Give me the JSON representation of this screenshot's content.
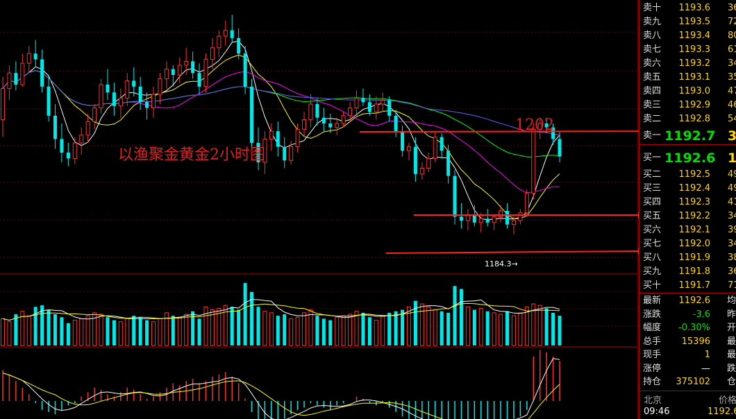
{
  "chart_data": {
    "type": "candlestick",
    "annotations": {
      "chart_title": "以渔聚金黄金2小时图",
      "level_label": "1202",
      "low_label": "1184.3→"
    },
    "candles": [
      [
        1190.2,
        1192.4,
        1189.3,
        1191.8
      ],
      [
        1191.8,
        1193.0,
        1191.2,
        1192.6
      ],
      [
        1192.6,
        1193.2,
        1191.7,
        1192.0
      ],
      [
        1192.0,
        1193.6,
        1191.9,
        1193.1
      ],
      [
        1193.1,
        1194.0,
        1192.6,
        1193.6
      ],
      [
        1193.6,
        1194.3,
        1192.9,
        1193.3
      ],
      [
        1193.3,
        1193.8,
        1191.6,
        1191.9
      ],
      [
        1191.9,
        1192.5,
        1190.1,
        1190.4
      ],
      [
        1190.4,
        1191.0,
        1188.7,
        1189.2
      ],
      [
        1189.2,
        1190.0,
        1188.0,
        1188.5
      ],
      [
        1188.5,
        1189.0,
        1187.8,
        1188.2
      ],
      [
        1188.2,
        1189.3,
        1187.9,
        1189.0
      ],
      [
        1189.0,
        1189.8,
        1188.4,
        1189.4
      ],
      [
        1189.4,
        1190.5,
        1189.0,
        1190.1
      ],
      [
        1190.1,
        1191.0,
        1189.7,
        1190.8
      ],
      [
        1190.8,
        1192.3,
        1190.5,
        1192.0
      ],
      [
        1192.0,
        1192.8,
        1191.2,
        1191.6
      ],
      [
        1191.6,
        1192.1,
        1190.4,
        1190.9
      ],
      [
        1190.9,
        1191.8,
        1190.3,
        1191.3
      ],
      [
        1191.3,
        1192.6,
        1190.9,
        1192.2
      ],
      [
        1192.2,
        1192.9,
        1191.4,
        1191.9
      ],
      [
        1191.9,
        1192.4,
        1190.7,
        1191.1
      ],
      [
        1191.1,
        1191.6,
        1190.2,
        1190.8
      ],
      [
        1190.8,
        1191.9,
        1190.3,
        1191.5
      ],
      [
        1191.5,
        1192.6,
        1191.0,
        1192.3
      ],
      [
        1192.3,
        1193.2,
        1191.8,
        1192.8
      ],
      [
        1192.8,
        1193.0,
        1191.9,
        1192.5
      ],
      [
        1192.5,
        1193.4,
        1192.1,
        1193.0
      ],
      [
        1193.0,
        1193.9,
        1192.5,
        1193.2
      ],
      [
        1193.2,
        1193.7,
        1192.3,
        1192.6
      ],
      [
        1192.6,
        1193.1,
        1191.5,
        1191.9
      ],
      [
        1191.9,
        1193.6,
        1191.6,
        1193.3
      ],
      [
        1193.3,
        1194.4,
        1192.8,
        1193.9
      ],
      [
        1193.9,
        1194.8,
        1193.4,
        1194.5
      ],
      [
        1194.5,
        1195.3,
        1194.0,
        1194.8
      ],
      [
        1194.8,
        1195.6,
        1194.2,
        1194.4
      ],
      [
        1194.4,
        1194.9,
        1193.3,
        1193.6
      ],
      [
        1193.6,
        1194.0,
        1191.5,
        1191.9
      ],
      [
        1191.9,
        1192.3,
        1188.5,
        1189.0
      ],
      [
        1189.0,
        1189.8,
        1187.6,
        1188.0
      ],
      [
        1188.0,
        1189.6,
        1187.4,
        1189.2
      ],
      [
        1189.2,
        1190.0,
        1188.6,
        1189.6
      ],
      [
        1189.6,
        1190.1,
        1188.3,
        1188.8
      ],
      [
        1188.8,
        1189.3,
        1187.7,
        1188.1
      ],
      [
        1188.1,
        1189.1,
        1187.9,
        1188.8
      ],
      [
        1188.8,
        1190.0,
        1188.5,
        1189.7
      ],
      [
        1189.7,
        1190.6,
        1189.3,
        1190.2
      ],
      [
        1190.2,
        1191.5,
        1189.8,
        1191.0
      ],
      [
        1191.0,
        1191.3,
        1189.9,
        1190.3
      ],
      [
        1190.3,
        1190.8,
        1189.6,
        1190.0
      ],
      [
        1190.0,
        1190.5,
        1189.5,
        1189.8
      ],
      [
        1189.8,
        1190.3,
        1189.4,
        1190.0
      ],
      [
        1190.0,
        1190.6,
        1189.8,
        1190.4
      ],
      [
        1190.4,
        1191.1,
        1190.1,
        1190.8
      ],
      [
        1190.8,
        1191.7,
        1190.5,
        1191.3
      ],
      [
        1191.3,
        1191.8,
        1190.9,
        1191.1
      ],
      [
        1191.1,
        1191.5,
        1190.4,
        1190.6
      ],
      [
        1190.6,
        1191.4,
        1190.2,
        1191.0
      ],
      [
        1191.0,
        1191.6,
        1190.6,
        1191.2
      ],
      [
        1191.2,
        1191.4,
        1190.1,
        1190.4
      ],
      [
        1190.4,
        1190.7,
        1189.3,
        1189.6
      ],
      [
        1189.6,
        1189.9,
        1188.3,
        1188.6
      ],
      [
        1188.6,
        1189.0,
        1188.1,
        1188.8
      ],
      [
        1188.8,
        1189.3,
        1187.0,
        1187.4
      ],
      [
        1187.4,
        1188.0,
        1187.1,
        1187.7
      ],
      [
        1187.7,
        1188.5,
        1187.5,
        1188.2
      ],
      [
        1188.2,
        1189.6,
        1188.0,
        1189.3
      ],
      [
        1189.3,
        1189.5,
        1188.2,
        1188.6
      ],
      [
        1188.6,
        1188.9,
        1186.9,
        1187.3
      ],
      [
        1187.3,
        1187.6,
        1184.8,
        1185.2
      ],
      [
        1185.2,
        1185.9,
        1184.6,
        1185.0
      ],
      [
        1185.0,
        1185.6,
        1184.5,
        1185.3
      ],
      [
        1185.3,
        1185.8,
        1184.7,
        1184.9
      ],
      [
        1184.9,
        1185.4,
        1184.4,
        1185.1
      ],
      [
        1185.1,
        1185.6,
        1184.7,
        1184.9
      ],
      [
        1184.9,
        1185.3,
        1184.5,
        1185.2
      ],
      [
        1185.2,
        1185.8,
        1184.9,
        1185.5
      ],
      [
        1185.5,
        1185.9,
        1184.6,
        1184.8
      ],
      [
        1184.8,
        1185.3,
        1184.3,
        1185.0
      ],
      [
        1185.0,
        1185.6,
        1184.8,
        1185.4
      ],
      [
        1185.4,
        1186.6,
        1185.2,
        1186.4
      ],
      [
        1186.4,
        1190.0,
        1186.1,
        1189.7
      ],
      [
        1189.7,
        1190.3,
        1189.2,
        1190.0
      ],
      [
        1190.0,
        1190.3,
        1189.5,
        1189.8
      ],
      [
        1189.8,
        1190.0,
        1188.9,
        1189.2
      ],
      [
        1189.2,
        1189.6,
        1188.0,
        1188.3
      ]
    ],
    "volume": [
      180,
      160,
      210,
      230,
      200,
      260,
      270,
      240,
      210,
      190,
      150,
      170,
      180,
      200,
      220,
      210,
      190,
      170,
      160,
      180,
      200,
      190,
      170,
      160,
      180,
      220,
      200,
      190,
      210,
      230,
      180,
      260,
      240,
      250,
      270,
      260,
      240,
      420,
      360,
      260,
      230,
      220,
      200,
      210,
      180,
      190,
      220,
      240,
      200,
      180,
      170,
      190,
      200,
      210,
      230,
      220,
      190,
      170,
      200,
      220,
      230,
      240,
      260,
      300,
      280,
      260,
      240,
      230,
      220,
      400,
      380,
      260,
      240,
      250,
      230,
      220,
      210,
      230,
      200,
      220,
      260,
      280,
      270,
      250,
      220,
      200
    ],
    "macd": [
      28,
      24,
      18,
      12,
      6,
      -2,
      -8,
      -10,
      -12,
      -8,
      -4,
      -2,
      4,
      8,
      12,
      10,
      6,
      4,
      8,
      12,
      10,
      6,
      2,
      4,
      8,
      12,
      16,
      14,
      18,
      20,
      16,
      18,
      22,
      24,
      26,
      22,
      16,
      2,
      -10,
      -18,
      -22,
      -20,
      -18,
      -16,
      -12,
      -8,
      -6,
      -2,
      -4,
      -6,
      -8,
      -4,
      -2,
      0,
      4,
      2,
      -2,
      -4,
      -2,
      -6,
      -10,
      -14,
      -16,
      -20,
      -22,
      -24,
      -26,
      -24,
      -26,
      -32,
      -34,
      -32,
      -30,
      -28,
      -24,
      -22,
      -20,
      -18,
      -16,
      -14,
      -8,
      40,
      46,
      44,
      40,
      36
    ],
    "y_range": [
      1182.5,
      1196.0
    ]
  },
  "order_book": {
    "asks": [
      {
        "label": "卖十",
        "price": "1193.6",
        "vol": "36"
      },
      {
        "label": "卖九",
        "price": "1193.5",
        "vol": "72"
      },
      {
        "label": "卖八",
        "price": "1193.4",
        "vol": "80"
      },
      {
        "label": "卖七",
        "price": "1193.3",
        "vol": "61"
      },
      {
        "label": "卖六",
        "price": "1193.2",
        "vol": "34"
      },
      {
        "label": "卖五",
        "price": "1193.1",
        "vol": "35"
      },
      {
        "label": "卖四",
        "price": "1193.0",
        "vol": "47"
      },
      {
        "label": "卖三",
        "price": "1192.9",
        "vol": "46"
      },
      {
        "label": "卖二",
        "price": "1192.8",
        "vol": "54"
      },
      {
        "label": "卖一",
        "price": "1192.7",
        "vol": "3"
      }
    ],
    "bids": [
      {
        "label": "买一",
        "price": "1192.6",
        "vol": "1"
      },
      {
        "label": "买二",
        "price": "1192.5",
        "vol": "49"
      },
      {
        "label": "买三",
        "price": "1192.4",
        "vol": "49"
      },
      {
        "label": "买四",
        "price": "1192.3",
        "vol": "41"
      },
      {
        "label": "买五",
        "price": "1192.2",
        "vol": "34"
      },
      {
        "label": "买六",
        "price": "1192.1",
        "vol": "39"
      },
      {
        "label": "买七",
        "price": "1192.0",
        "vol": "34"
      },
      {
        "label": "买八",
        "price": "1191.9",
        "vol": "38"
      },
      {
        "label": "买九",
        "price": "1191.8",
        "vol": "36"
      },
      {
        "label": "买十",
        "price": "1191.7",
        "vol": "71"
      }
    ]
  },
  "quote": [
    {
      "label": "最新",
      "value": "1192.6",
      "k2": "均",
      "color": "#ffd700"
    },
    {
      "label": "涨跌",
      "value": "-3.6",
      "k2": "昨",
      "color": "#00e000"
    },
    {
      "label": "幅度",
      "value": "-0.30%",
      "k2": "开",
      "color": "#00e000"
    },
    {
      "label": "总手",
      "value": "15396",
      "k2": "最",
      "color": "#ffd700"
    },
    {
      "label": "现手",
      "value": "1",
      "k2": "最",
      "color": "#ffd700"
    },
    {
      "label": "涨停",
      "value": "—",
      "k2": "跌",
      "color": "#ffffff"
    },
    {
      "label": "持仓",
      "value": "375102",
      "k2": "仓",
      "color": "#ffd700"
    }
  ],
  "footer": {
    "place": "北京",
    "price_label": "价格",
    "time": "09:46",
    "price": "1192.6"
  },
  "colors": {
    "up": "#ff3030",
    "down": "#00e8e8",
    "ma5": "#ffffff",
    "ma10": "#ffff00",
    "ma20": "#ff00ff",
    "ma40": "#00ff00",
    "ma60": "#6060ff"
  }
}
